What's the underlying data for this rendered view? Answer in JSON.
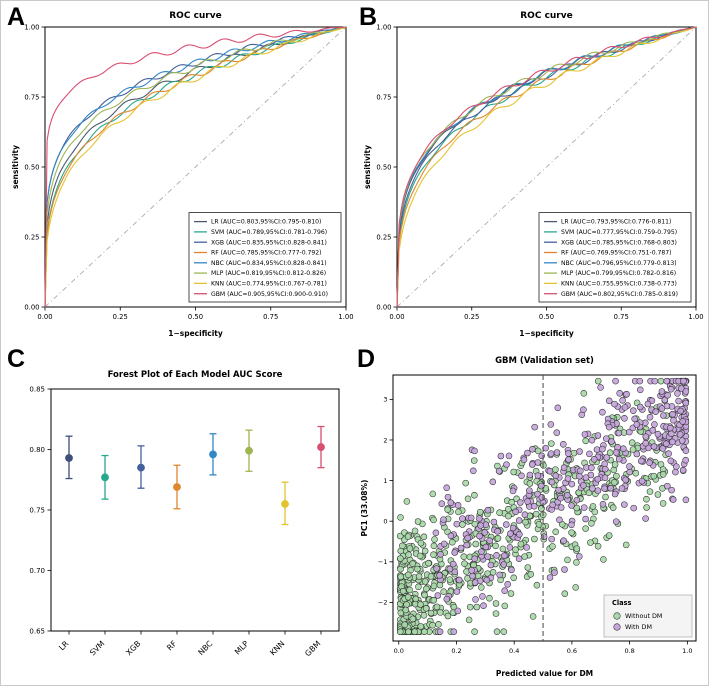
{
  "panels": {
    "a": {
      "letter": "A"
    },
    "b": {
      "letter": "B"
    },
    "c": {
      "letter": "C"
    },
    "d": {
      "letter": "D"
    }
  },
  "chart_data": [
    {
      "id": "roc_training",
      "panel": "A",
      "type": "line",
      "title": "ROC curve",
      "xlabel": "1−specificity",
      "ylabel": "sensitivity",
      "xlim": [
        0,
        1
      ],
      "ylim": [
        0,
        1
      ],
      "xticks": [
        0,
        0.25,
        0.5,
        0.75,
        1
      ],
      "yticks": [
        0,
        0.25,
        0.5,
        0.75,
        1
      ],
      "diagonal_reference": true,
      "legend_position": "lower right",
      "series": [
        {
          "name": "LR",
          "auc": 0.803,
          "ci_low": 0.795,
          "ci_high": 0.81,
          "color": "#4d5a6e",
          "label": "LR (AUC=0.803,95%CI:0.795-0.810)"
        },
        {
          "name": "SVM",
          "auc": 0.789,
          "ci_low": 0.781,
          "ci_high": 0.796,
          "color": "#27a88c",
          "label": "SVM (AUC=0.789,95%CI:0.781-0.796)"
        },
        {
          "name": "XGB",
          "auc": 0.835,
          "ci_low": 0.828,
          "ci_high": 0.841,
          "color": "#44609d",
          "label": "XGB (AUC=0.835,95%CI:0.828-0.841)"
        },
        {
          "name": "RF",
          "auc": 0.785,
          "ci_low": 0.777,
          "ci_high": 0.792,
          "color": "#e0862e",
          "label": "RF (AUC=0.785,95%CI:0.777-0.792)"
        },
        {
          "name": "NBC",
          "auc": 0.834,
          "ci_low": 0.828,
          "ci_high": 0.841,
          "color": "#3188c4",
          "label": "NBC (AUC=0.834,95%CI:0.828-0.841)"
        },
        {
          "name": "MLP",
          "auc": 0.819,
          "ci_low": 0.812,
          "ci_high": 0.826,
          "color": "#9fb554",
          "label": "MLP (AUC=0.819,95%CI:0.812-0.826)"
        },
        {
          "name": "KNN",
          "auc": 0.774,
          "ci_low": 0.767,
          "ci_high": 0.781,
          "color": "#e4c330",
          "label": "KNN (AUC=0.774,95%CI:0.767-0.781)"
        },
        {
          "name": "GBM",
          "auc": 0.905,
          "ci_low": 0.9,
          "ci_high": 0.91,
          "color": "#d94f70",
          "label": "GBM (AUC=0.905,95%CI:0.900-0.910)"
        }
      ]
    },
    {
      "id": "roc_validation",
      "panel": "B",
      "type": "line",
      "title": "ROC curve",
      "xlabel": "1−specificity",
      "ylabel": "sensitivity",
      "xlim": [
        0,
        1
      ],
      "ylim": [
        0,
        1
      ],
      "xticks": [
        0,
        0.25,
        0.5,
        0.75,
        1
      ],
      "yticks": [
        0,
        0.25,
        0.5,
        0.75,
        1
      ],
      "diagonal_reference": true,
      "legend_position": "lower right",
      "series": [
        {
          "name": "LR",
          "auc": 0.793,
          "ci_low": 0.776,
          "ci_high": 0.811,
          "color": "#4d5a6e",
          "label": "LR (AUC=0.793,95%CI:0.776-0.811)"
        },
        {
          "name": "SVM",
          "auc": 0.777,
          "ci_low": 0.759,
          "ci_high": 0.795,
          "color": "#27a88c",
          "label": "SVM (AUC=0.777,95%CI:0.759-0.795)"
        },
        {
          "name": "XGB",
          "auc": 0.785,
          "ci_low": 0.768,
          "ci_high": 0.803,
          "color": "#44609d",
          "label": "XGB (AUC=0.785,95%CI:0.768-0.803)"
        },
        {
          "name": "RF",
          "auc": 0.769,
          "ci_low": 0.751,
          "ci_high": 0.787,
          "color": "#e0862e",
          "label": "RF (AUC=0.769,95%CI:0.751-0.787)"
        },
        {
          "name": "NBC",
          "auc": 0.796,
          "ci_low": 0.779,
          "ci_high": 0.813,
          "color": "#3188c4",
          "label": "NBC (AUC=0.796,95%CI:0.779-0.813)"
        },
        {
          "name": "MLP",
          "auc": 0.799,
          "ci_low": 0.782,
          "ci_high": 0.816,
          "color": "#9fb554",
          "label": "MLP (AUC=0.799,95%CI:0.782-0.816)"
        },
        {
          "name": "KNN",
          "auc": 0.755,
          "ci_low": 0.738,
          "ci_high": 0.773,
          "color": "#e4c330",
          "label": "KNN (AUC=0.755,95%CI:0.738-0.773)"
        },
        {
          "name": "GBM",
          "auc": 0.802,
          "ci_low": 0.785,
          "ci_high": 0.819,
          "color": "#d94f70",
          "label": "GBM (AUC=0.802,95%CI:0.785-0.819)"
        }
      ]
    },
    {
      "id": "forest_auc",
      "panel": "C",
      "type": "scatter",
      "title": "Forest Plot of Each Model AUC Score",
      "xlabel": "",
      "ylabel": "",
      "ylim": [
        0.65,
        0.85
      ],
      "yticks": [
        0.65,
        0.7,
        0.75,
        0.8,
        0.85
      ],
      "categories": [
        "LR",
        "SVM",
        "XGB",
        "RF",
        "NBC",
        "MLP",
        "KNN",
        "GBM"
      ],
      "points": [
        {
          "model": "LR",
          "est": 0.793,
          "lo": 0.776,
          "hi": 0.811,
          "color": "#3e4f7a"
        },
        {
          "model": "SVM",
          "est": 0.777,
          "lo": 0.759,
          "hi": 0.795,
          "color": "#27a88c"
        },
        {
          "model": "XGB",
          "est": 0.785,
          "lo": 0.768,
          "hi": 0.803,
          "color": "#44609d"
        },
        {
          "model": "RF",
          "est": 0.769,
          "lo": 0.751,
          "hi": 0.787,
          "color": "#e0862e"
        },
        {
          "model": "NBC",
          "est": 0.796,
          "lo": 0.779,
          "hi": 0.813,
          "color": "#3188c4"
        },
        {
          "model": "MLP",
          "est": 0.799,
          "lo": 0.782,
          "hi": 0.816,
          "color": "#9fb554"
        },
        {
          "model": "KNN",
          "est": 0.755,
          "lo": 0.738,
          "hi": 0.773,
          "color": "#e4c330"
        },
        {
          "model": "GBM",
          "est": 0.802,
          "lo": 0.785,
          "hi": 0.819,
          "color": "#d94f70"
        }
      ]
    },
    {
      "id": "gbm_validation_scatter",
      "panel": "D",
      "type": "scatter",
      "title": "GBM (Validation set)",
      "xlabel": "Predicted value for DM",
      "ylabel": "PC1 (33.08%)",
      "xlim": [
        0,
        1
      ],
      "ylim": [
        -2.9,
        3.6
      ],
      "xticks": [
        0,
        0.2,
        0.4,
        0.6,
        0.8,
        1.0
      ],
      "yticks": [
        -2,
        -1,
        0,
        1,
        2,
        3
      ],
      "decision_threshold_x": 0.5,
      "legend_title": "Class",
      "classes": [
        {
          "name": "Without DM",
          "color": "#a8d9a8",
          "n": 620,
          "x_pow": 2.1,
          "x_scale": 0.93,
          "y_intercept": -1.95,
          "y_slope": 4.3,
          "y_sd": 0.95
        },
        {
          "name": "With DM",
          "color": "#c6a5dc",
          "n": 430,
          "x_pow": 1.7,
          "x_scale": 0.88,
          "y_intercept": -1.7,
          "y_slope": 4.5,
          "y_sd": 0.9
        }
      ]
    }
  ]
}
